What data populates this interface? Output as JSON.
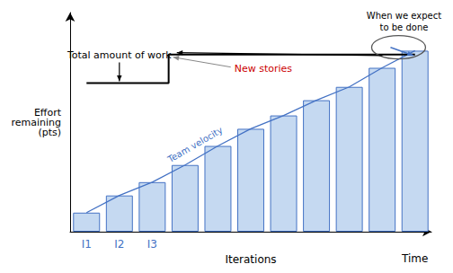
{
  "chart_data": {
    "type": "bar",
    "categories": [
      "I1",
      "I2",
      "I3",
      null,
      null,
      null,
      null,
      null,
      null,
      null,
      null
    ],
    "xlabel": "Iterations",
    "ylabel": "Effort\nremaining\n(pts)",
    "ylim": [
      0,
      11.5
    ],
    "tick_labels": "x",
    "grid": false,
    "series": [
      {
        "type": "bar",
        "color": "#c5d9f1",
        "values": [
          1.0,
          1.9,
          2.6,
          3.5,
          4.5,
          5.4,
          6.1,
          6.9,
          7.6,
          8.6,
          9.5
        ]
      },
      {
        "type": "line",
        "color": "#4472c4",
        "values": [
          1.0,
          1.9,
          2.6,
          3.5,
          4.5,
          5.4,
          6.1,
          6.9,
          7.6,
          8.6,
          9.5
        ]
      },
      {
        "type": "line",
        "line_style": "step",
        "color": "#000000",
        "values": [
          7.8,
          7.8,
          7.8,
          9.3,
          9.3,
          9.3,
          9.3,
          9.3,
          9.3,
          9.3,
          9.3
        ]
      }
    ],
    "annotations": [
      {
        "text": "Total amount of work"
      },
      {
        "text": "New stories",
        "color": "#cc0000"
      },
      {
        "text": "Team velocity",
        "color": "#4472c4"
      },
      {
        "text": "When we expect\nto be done"
      },
      {
        "text": "Time"
      }
    ]
  }
}
